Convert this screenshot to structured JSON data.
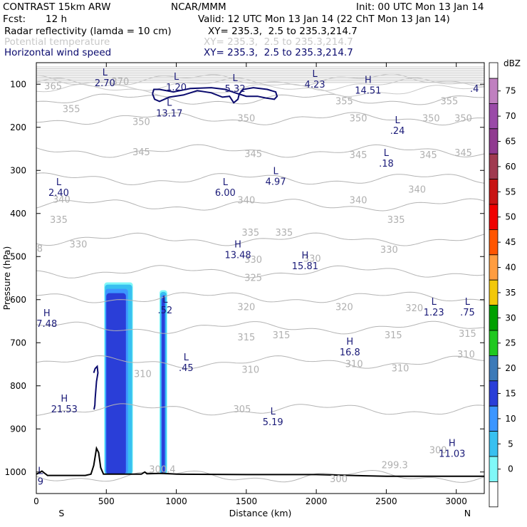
{
  "header": {
    "title_left": "CONTRAST 15km ARW",
    "center": "NCAR/MMM",
    "init": "Init: 00 UTC Mon 13 Jan 14",
    "fcst_label": "Fcst:",
    "fcst_value": "12 h",
    "valid": "Valid: 12 UTC Mon 13 Jan 14 (22 ChT Mon 13 Jan 14)",
    "fields": [
      {
        "name": "Radar reflectivity (lamda = 10 cm)",
        "xy": "XY= 235.3,  2.5 to 235.3,214.7",
        "color": "#000000"
      },
      {
        "name": "Potential temperature",
        "xy": "XY= 235.3,  2.5 to 235.3,214.7",
        "color": "#c8c8c8"
      },
      {
        "name": "Horizontal wind speed",
        "xy": "XY= 235.3,  2.5 to 235.3,214.7",
        "color": "#0a0a6e"
      }
    ]
  },
  "chart_data": {
    "type": "cross-section",
    "xlabel": "Distance (km)",
    "ylabel": "Pressure (hPa)",
    "xlim": [
      0,
      3200
    ],
    "ylim": [
      1050,
      50
    ],
    "x_ticks": [
      0,
      500,
      1000,
      1500,
      2000,
      2500,
      3000
    ],
    "y_ticks": [
      100,
      200,
      300,
      400,
      500,
      600,
      700,
      800,
      900,
      1000
    ],
    "end_labels": {
      "left": "S",
      "right": "N"
    },
    "colorbar": {
      "unit": "dBZ",
      "levels": [
        {
          "value": "75",
          "color": "#c080c0"
        },
        {
          "value": "70",
          "color": "#9a4aa8"
        },
        {
          "value": "65",
          "color": "#903a90"
        },
        {
          "value": "60",
          "color": "#a03a50"
        },
        {
          "value": "55",
          "color": "#c81414"
        },
        {
          "value": "50",
          "color": "#f00000"
        },
        {
          "value": "45",
          "color": "#ff5500"
        },
        {
          "value": "40",
          "color": "#ff9d40"
        },
        {
          "value": "35",
          "color": "#f2c80a"
        },
        {
          "value": "30",
          "color": "#00a000"
        },
        {
          "value": "25",
          "color": "#20c820"
        },
        {
          "value": "20",
          "color": "#3c7ab8"
        },
        {
          "value": "15",
          "color": "#2a3ed8"
        },
        {
          "value": "10",
          "color": "#3c96ff"
        },
        {
          "value": "5",
          "color": "#38c0f0"
        },
        {
          "value": "0",
          "color": "#80f8f8"
        },
        {
          "value": "",
          "color": "#ffffff"
        }
      ]
    },
    "theta_contours": [
      {
        "label": "300",
        "p": 1010
      },
      {
        "label": "305",
        "p": 855
      },
      {
        "label": "310",
        "p": 745
      },
      {
        "label": "315",
        "p": 665
      },
      {
        "label": "320",
        "p": 595
      },
      {
        "label": "325",
        "p": 535
      },
      {
        "label": "330",
        "p": 460
      },
      {
        "label": "335",
        "p": 380
      },
      {
        "label": "340",
        "p": 320
      },
      {
        "label": "345",
        "p": 255
      },
      {
        "label": "350",
        "p": 180
      },
      {
        "label": "355",
        "p": 135
      },
      {
        "label": "360",
        "p": 115
      },
      {
        "label": "365",
        "p": 100
      },
      {
        "label": "370",
        "p": 90
      }
    ],
    "theta_labels": [
      {
        "text": "365",
        "x": 120,
        "p": 105
      },
      {
        "text": "370",
        "x": 600,
        "p": 95
      },
      {
        "text": "355",
        "x": 250,
        "p": 158
      },
      {
        "text": "350",
        "x": 750,
        "p": 188
      },
      {
        "text": "350",
        "x": 1500,
        "p": 180
      },
      {
        "text": "350",
        "x": 2300,
        "p": 180
      },
      {
        "text": "350",
        "x": 2820,
        "p": 180
      },
      {
        "text": "350",
        "x": 3050,
        "p": 180
      },
      {
        "text": "355",
        "x": 2200,
        "p": 140
      },
      {
        "text": "355",
        "x": 2950,
        "p": 140
      },
      {
        "text": "345",
        "x": 750,
        "p": 258
      },
      {
        "text": "345",
        "x": 1550,
        "p": 262
      },
      {
        "text": "345",
        "x": 2300,
        "p": 265
      },
      {
        "text": "345",
        "x": 2800,
        "p": 265
      },
      {
        "text": "345",
        "x": 3050,
        "p": 260
      },
      {
        "text": "340",
        "x": 180,
        "p": 368
      },
      {
        "text": "340",
        "x": 1500,
        "p": 370
      },
      {
        "text": "340",
        "x": 2300,
        "p": 370
      },
      {
        "text": "340",
        "x": 2720,
        "p": 345
      },
      {
        "text": "335",
        "x": 160,
        "p": 415
      },
      {
        "text": "335",
        "x": 1530,
        "p": 445
      },
      {
        "text": "335",
        "x": 1770,
        "p": 445
      },
      {
        "text": "335",
        "x": 2570,
        "p": 415
      },
      {
        "text": "330",
        "x": 300,
        "p": 472
      },
      {
        "text": "330",
        "x": 1550,
        "p": 508
      },
      {
        "text": "330",
        "x": 1970,
        "p": 505
      },
      {
        "text": "330",
        "x": 2520,
        "p": 485
      },
      {
        "text": "325",
        "x": 1550,
        "p": 550
      },
      {
        "text": "320",
        "x": 1500,
        "p": 618
      },
      {
        "text": "320",
        "x": 2200,
        "p": 618
      },
      {
        "text": "320",
        "x": 2700,
        "p": 620
      },
      {
        "text": "315",
        "x": 1500,
        "p": 688
      },
      {
        "text": "315",
        "x": 1750,
        "p": 683
      },
      {
        "text": "315",
        "x": 2550,
        "p": 683
      },
      {
        "text": "315",
        "x": 3080,
        "p": 680
      },
      {
        "text": "310",
        "x": 760,
        "p": 773
      },
      {
        "text": "310",
        "x": 1530,
        "p": 763
      },
      {
        "text": "310",
        "x": 2270,
        "p": 750
      },
      {
        "text": "310",
        "x": 2600,
        "p": 760
      },
      {
        "text": "310",
        "x": 3070,
        "p": 728
      },
      {
        "text": "305",
        "x": 1470,
        "p": 855
      },
      {
        "text": "300",
        "x": 2870,
        "p": 950
      },
      {
        "text": "299.3",
        "x": 2560,
        "p": 985
      },
      {
        "text": "300",
        "x": 2160,
        "p": 1017
      },
      {
        "text": "300.4",
        "x": 900,
        "p": 995
      },
      {
        "text": "8",
        "x": 25,
        "p": 482
      }
    ],
    "extrema": [
      {
        "type": "L",
        "value": "2.70",
        "x": 490,
        "p": 83
      },
      {
        "type": "L",
        "value": "1.20",
        "x": 1000,
        "p": 93
      },
      {
        "type": "L",
        "value": "5.32",
        "x": 1420,
        "p": 96
      },
      {
        "type": "L",
        "value": "4.23",
        "x": 1990,
        "p": 86
      },
      {
        "type": "H",
        "value": "14.51",
        "x": 2370,
        "p": 100
      },
      {
        "type": "",
        "value": ".4",
        "x": 3130,
        "p": 96
      },
      {
        "type": "L",
        "value": "13.17",
        "x": 950,
        "p": 153
      },
      {
        "type": "L",
        "value": ".24",
        "x": 2580,
        "p": 194
      },
      {
        "type": "L",
        "value": ".18",
        "x": 2500,
        "p": 270
      },
      {
        "type": "L",
        "value": "2.40",
        "x": 160,
        "p": 338
      },
      {
        "type": "L",
        "value": "6.00",
        "x": 1350,
        "p": 338
      },
      {
        "type": "L",
        "value": "4.97",
        "x": 1710,
        "p": 312
      },
      {
        "type": "H",
        "value": "13.48",
        "x": 1440,
        "p": 482
      },
      {
        "type": "H",
        "value": "15.81",
        "x": 1920,
        "p": 508
      },
      {
        "type": "L",
        "value": ".52",
        "x": 920,
        "p": 610
      },
      {
        "type": "L",
        "value": "1.23",
        "x": 2840,
        "p": 615
      },
      {
        "type": "L",
        "value": ".75",
        "x": 3080,
        "p": 615
      },
      {
        "type": "H",
        "value": "7.48",
        "x": 75,
        "p": 642
      },
      {
        "type": "H",
        "value": "16.8",
        "x": 2240,
        "p": 708
      },
      {
        "type": "L",
        "value": ".45",
        "x": 1070,
        "p": 744
      },
      {
        "type": "H",
        "value": "21.53",
        "x": 200,
        "p": 840
      },
      {
        "type": "L",
        "value": "5.19",
        "x": 1690,
        "p": 870
      },
      {
        "type": "H",
        "value": "11.03",
        "x": 2970,
        "p": 943
      },
      {
        "type": "L",
        "value": "9",
        "x": 30,
        "p": 1008
      }
    ],
    "reflectivity": [
      {
        "x0": 485,
        "x1": 690,
        "ptop": 560,
        "pbot": 1005,
        "level": "0"
      },
      {
        "x0": 490,
        "x1": 685,
        "ptop": 565,
        "pbot": 1005,
        "level": "5"
      },
      {
        "x0": 493,
        "x1": 655,
        "ptop": 575,
        "pbot": 1005,
        "level": "10"
      },
      {
        "x0": 500,
        "x1": 640,
        "ptop": 585,
        "pbot": 1005,
        "level": "15"
      },
      {
        "x0": 880,
        "x1": 935,
        "ptop": 578,
        "pbot": 1005,
        "level": "0"
      },
      {
        "x0": 885,
        "x1": 930,
        "ptop": 582,
        "pbot": 1005,
        "level": "5"
      },
      {
        "x0": 892,
        "x1": 922,
        "ptop": 588,
        "pbot": 1005,
        "level": "10"
      },
      {
        "x0": 896,
        "x1": 918,
        "ptop": 592,
        "pbot": 1005,
        "level": "15"
      }
    ],
    "terrain": [
      [
        0,
        1005
      ],
      [
        20,
        1002
      ],
      [
        40,
        998
      ],
      [
        60,
        1003
      ],
      [
        80,
        1008
      ],
      [
        200,
        1008
      ],
      [
        350,
        1008
      ],
      [
        390,
        1005
      ],
      [
        410,
        985
      ],
      [
        430,
        945
      ],
      [
        445,
        955
      ],
      [
        460,
        990
      ],
      [
        480,
        1005
      ],
      [
        750,
        1005
      ],
      [
        775,
        1000
      ],
      [
        790,
        1004
      ],
      [
        900,
        1003
      ],
      [
        1000,
        1005
      ],
      [
        1500,
        1006
      ],
      [
        2000,
        1006
      ],
      [
        2500,
        1010
      ],
      [
        3200,
        1010
      ]
    ],
    "wind_contours": [
      {
        "name": "upper",
        "points": [
          [
            830,
            122
          ],
          [
            845,
            135
          ],
          [
            880,
            140
          ],
          [
            950,
            130
          ],
          [
            1050,
            125
          ],
          [
            1150,
            115
          ],
          [
            1250,
            120
          ],
          [
            1330,
            130
          ],
          [
            1380,
            128
          ],
          [
            1410,
            143
          ],
          [
            1440,
            135
          ],
          [
            1450,
            122
          ],
          [
            1480,
            112
          ],
          [
            1550,
            108
          ],
          [
            1650,
            112
          ],
          [
            1710,
            118
          ],
          [
            1720,
            128
          ],
          [
            1700,
            135
          ],
          [
            1640,
            132
          ],
          [
            1580,
            128
          ],
          [
            1500,
            128
          ],
          [
            1420,
            120
          ],
          [
            1350,
            112
          ],
          [
            1250,
            108
          ],
          [
            1100,
            110
          ],
          [
            980,
            118
          ],
          [
            880,
            112
          ],
          [
            840,
            112
          ],
          [
            830,
            122
          ]
        ]
      },
      {
        "name": "lower",
        "points": [
          [
            410,
            770
          ],
          [
            420,
            760
          ],
          [
            435,
            755
          ],
          [
            440,
            770
          ],
          [
            430,
            790
          ],
          [
            420,
            830
          ],
          [
            418,
            845
          ],
          [
            412,
            855
          ]
        ]
      }
    ]
  }
}
